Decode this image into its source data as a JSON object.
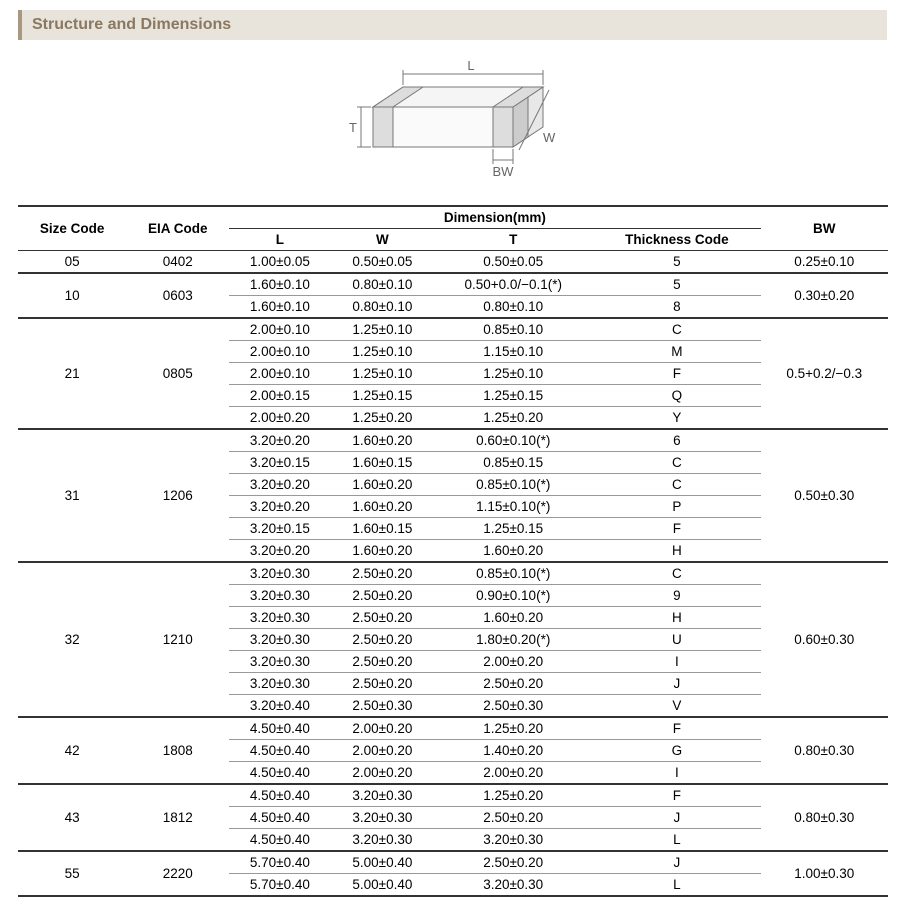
{
  "title": "Structure and Dimensions",
  "diagram": {
    "labels": {
      "L": "L",
      "W": "W",
      "T": "T",
      "BW": "BW"
    },
    "stroke": "#777777",
    "fill": "#f5f5f5",
    "text_color": "#666666"
  },
  "table": {
    "header_group": "Dimension(mm)",
    "columns": [
      "Size Code",
      "EIA Code",
      "L",
      "W",
      "T",
      "Thickness  Code",
      "BW"
    ],
    "groups": [
      {
        "size": "05",
        "eia": "0402",
        "bw": "0.25±0.10",
        "rows": [
          {
            "L": "1.00±0.05",
            "W": "0.50±0.05",
            "T": "0.50±0.05",
            "TC": "5"
          }
        ]
      },
      {
        "size": "10",
        "eia": "0603",
        "bw": "0.30±0.20",
        "rows": [
          {
            "L": "1.60±0.10",
            "W": "0.80±0.10",
            "T": "0.50+0.0/−0.1(*)",
            "TC": "5"
          },
          {
            "L": "1.60±0.10",
            "W": "0.80±0.10",
            "T": "0.80±0.10",
            "TC": "8"
          }
        ]
      },
      {
        "size": "21",
        "eia": "0805",
        "bw": "0.5+0.2/−0.3",
        "rows": [
          {
            "L": "2.00±0.10",
            "W": "1.25±0.10",
            "T": "0.85±0.10",
            "TC": "C"
          },
          {
            "L": "2.00±0.10",
            "W": "1.25±0.10",
            "T": "1.15±0.10",
            "TC": "M"
          },
          {
            "L": "2.00±0.10",
            "W": "1.25±0.10",
            "T": "1.25±0.10",
            "TC": "F"
          },
          {
            "L": "2.00±0.15",
            "W": "1.25±0.15",
            "T": "1.25±0.15",
            "TC": "Q"
          },
          {
            "L": "2.00±0.20",
            "W": "1.25±0.20",
            "T": "1.25±0.20",
            "TC": "Y"
          }
        ]
      },
      {
        "size": "31",
        "eia": "1206",
        "bw": "0.50±0.30",
        "rows": [
          {
            "L": "3.20±0.20",
            "W": "1.60±0.20",
            "T": "0.60±0.10(*)",
            "TC": "6"
          },
          {
            "L": "3.20±0.15",
            "W": "1.60±0.15",
            "T": "0.85±0.15",
            "TC": "C"
          },
          {
            "L": "3.20±0.20",
            "W": "1.60±0.20",
            "T": "0.85±0.10(*)",
            "TC": "C"
          },
          {
            "L": "3.20±0.20",
            "W": "1.60±0.20",
            "T": "1.15±0.10(*)",
            "TC": "P"
          },
          {
            "L": "3.20±0.15",
            "W": "1.60±0.15",
            "T": "1.25±0.15",
            "TC": "F"
          },
          {
            "L": "3.20±0.20",
            "W": "1.60±0.20",
            "T": "1.60±0.20",
            "TC": "H"
          }
        ]
      },
      {
        "size": "32",
        "eia": "1210",
        "bw": "0.60±0.30",
        "rows": [
          {
            "L": "3.20±0.30",
            "W": "2.50±0.20",
            "T": "0.85±0.10(*)",
            "TC": "C"
          },
          {
            "L": "3.20±0.30",
            "W": "2.50±0.20",
            "T": "0.90±0.10(*)",
            "TC": "9"
          },
          {
            "L": "3.20±0.30",
            "W": "2.50±0.20",
            "T": "1.60±0.20",
            "TC": "H"
          },
          {
            "L": "3.20±0.30",
            "W": "2.50±0.20",
            "T": "1.80±0.20(*)",
            "TC": "U"
          },
          {
            "L": "3.20±0.30",
            "W": "2.50±0.20",
            "T": "2.00±0.20",
            "TC": "I"
          },
          {
            "L": "3.20±0.30",
            "W": "2.50±0.20",
            "T": "2.50±0.20",
            "TC": "J"
          },
          {
            "L": "3.20±0.40",
            "W": "2.50±0.30",
            "T": "2.50±0.30",
            "TC": "V"
          }
        ]
      },
      {
        "size": "42",
        "eia": "1808",
        "bw": "0.80±0.30",
        "rows": [
          {
            "L": "4.50±0.40",
            "W": "2.00±0.20",
            "T": "1.25±0.20",
            "TC": "F"
          },
          {
            "L": "4.50±0.40",
            "W": "2.00±0.20",
            "T": "1.40±0.20",
            "TC": "G"
          },
          {
            "L": "4.50±0.40",
            "W": "2.00±0.20",
            "T": "2.00±0.20",
            "TC": "I"
          }
        ]
      },
      {
        "size": "43",
        "eia": "1812",
        "bw": "0.80±0.30",
        "rows": [
          {
            "L": "4.50±0.40",
            "W": "3.20±0.30",
            "T": "1.25±0.20",
            "TC": "F"
          },
          {
            "L": "4.50±0.40",
            "W": "3.20±0.30",
            "T": "2.50±0.20",
            "TC": "J"
          },
          {
            "L": "4.50±0.40",
            "W": "3.20±0.30",
            "T": "3.20±0.30",
            "TC": "L"
          }
        ]
      },
      {
        "size": "55",
        "eia": "2220",
        "bw": "1.00±0.30",
        "rows": [
          {
            "L": "5.70±0.40",
            "W": "5.00±0.40",
            "T": "2.50±0.20",
            "TC": "J"
          },
          {
            "L": "5.70±0.40",
            "W": "5.00±0.40",
            "T": "3.20±0.30",
            "TC": "L"
          }
        ]
      }
    ]
  }
}
